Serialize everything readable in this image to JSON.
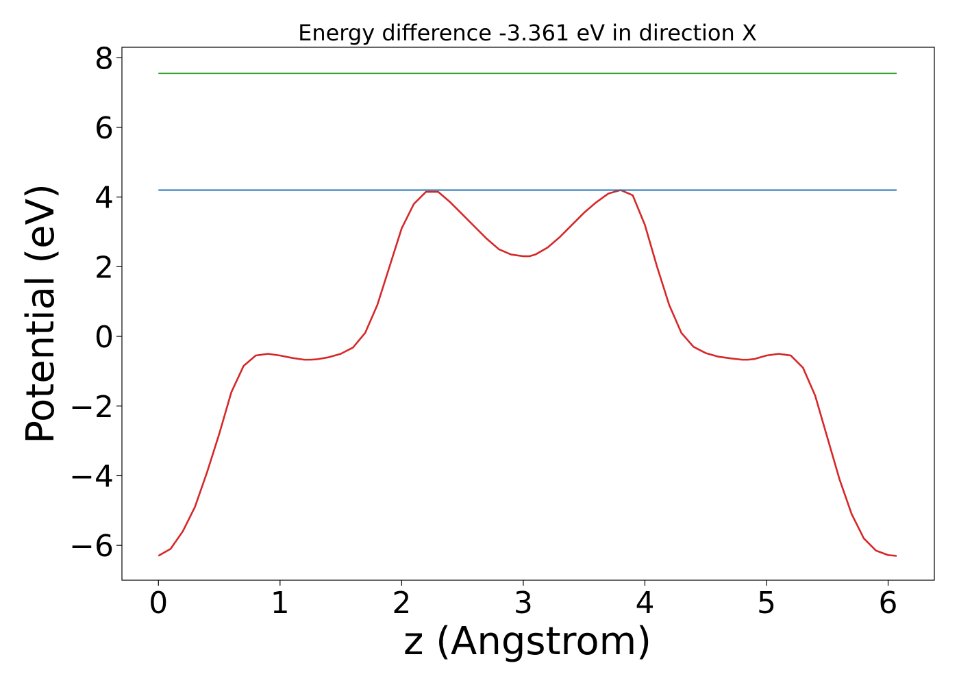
{
  "chart_data": {
    "type": "line",
    "title": "Energy difference -3.361 eV in direction X",
    "xlabel": "z (Angstrom)",
    "ylabel": "Potential (eV)",
    "xlim": [
      -0.3,
      6.38
    ],
    "ylim": [
      -7.0,
      8.3
    ],
    "xticks": [
      0,
      1,
      2,
      3,
      4,
      5,
      6
    ],
    "xtick_labels": [
      "0",
      "1",
      "2",
      "3",
      "4",
      "5",
      "6"
    ],
    "yticks": [
      8,
      6,
      4,
      2,
      0,
      -2,
      -4,
      -6
    ],
    "ytick_labels": [
      "8",
      "6",
      "4",
      "2",
      "0",
      "−2",
      "−4",
      "−6"
    ],
    "grid": false,
    "series": [
      {
        "color": "#d62728",
        "x": [
          0.0,
          0.1,
          0.2,
          0.3,
          0.4,
          0.5,
          0.6,
          0.7,
          0.8,
          0.9,
          1.0,
          1.1,
          1.2,
          1.25,
          1.3,
          1.4,
          1.5,
          1.6,
          1.7,
          1.8,
          1.9,
          2.0,
          2.1,
          2.2,
          2.3,
          2.4,
          2.5,
          2.6,
          2.7,
          2.8,
          2.9,
          3.0,
          3.05,
          3.1,
          3.2,
          3.3,
          3.4,
          3.5,
          3.6,
          3.7,
          3.8,
          3.9,
          4.0,
          4.1,
          4.2,
          4.3,
          4.4,
          4.5,
          4.6,
          4.7,
          4.8,
          4.85,
          4.9,
          5.0,
          5.1,
          5.2,
          5.3,
          5.4,
          5.5,
          5.6,
          5.7,
          5.8,
          5.9,
          6.0,
          6.07
        ],
        "values": [
          -6.3,
          -6.1,
          -5.6,
          -4.9,
          -3.9,
          -2.8,
          -1.6,
          -0.85,
          -0.55,
          -0.5,
          -0.55,
          -0.62,
          -0.67,
          -0.67,
          -0.66,
          -0.6,
          -0.5,
          -0.32,
          0.1,
          0.9,
          2.0,
          3.1,
          3.8,
          4.15,
          4.15,
          3.85,
          3.5,
          3.15,
          2.8,
          2.5,
          2.35,
          2.3,
          2.3,
          2.35,
          2.55,
          2.85,
          3.2,
          3.55,
          3.85,
          4.1,
          4.2,
          4.05,
          3.2,
          2.0,
          0.9,
          0.1,
          -0.3,
          -0.48,
          -0.58,
          -0.63,
          -0.67,
          -0.67,
          -0.65,
          -0.55,
          -0.5,
          -0.55,
          -0.9,
          -1.7,
          -2.9,
          -4.1,
          -5.1,
          -5.8,
          -6.15,
          -6.28,
          -6.3
        ]
      },
      {
        "color": "#1f77b4",
        "x": [
          0.0,
          6.07
        ],
        "values": [
          4.2,
          4.2
        ]
      },
      {
        "color": "#2ca02c",
        "x": [
          0.0,
          6.07
        ],
        "values": [
          7.55,
          7.55
        ]
      }
    ]
  }
}
